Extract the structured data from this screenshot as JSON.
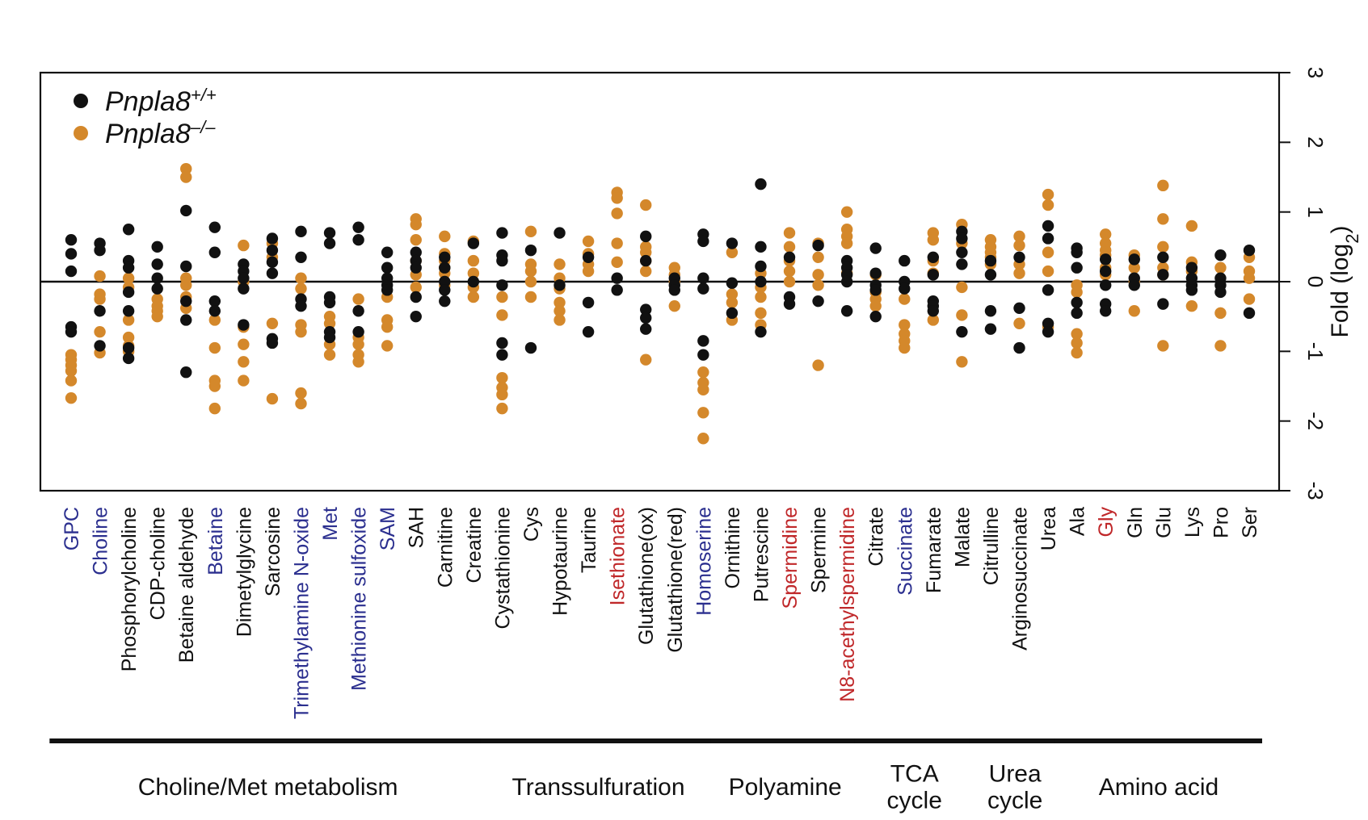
{
  "chart_data": {
    "type": "scatter",
    "ylabel": "Fold (log",
    "ylabel_sub": "2",
    "ylabel_close": ")",
    "ylim": [
      -3,
      3
    ],
    "yticks": [
      3,
      2,
      1,
      0,
      -1,
      -2,
      -3
    ],
    "legend": {
      "position": "top-left",
      "entries": [
        {
          "name": "Pnpla8",
          "sup": "+/+",
          "color": "#111111"
        },
        {
          "name": "Pnpla8",
          "sup": "–/–",
          "color": "#d4882b"
        }
      ]
    },
    "colors": {
      "wt": "#111111",
      "ko": "#d4882b",
      "blue_label": "#2b2f8f",
      "red_label": "#c0282a",
      "black_label": "#111111"
    },
    "categories": [
      {
        "name": "GPC",
        "label_color": "blue",
        "wt": [
          0.6,
          0.4,
          0.15,
          -0.65,
          -0.72
        ],
        "ko": [
          -1.05,
          -1.12,
          -1.2,
          -1.28,
          -1.42,
          -1.67
        ]
      },
      {
        "name": "Choline",
        "label_color": "blue",
        "wt": [
          0.55,
          0.45,
          -0.42,
          -0.92
        ],
        "ko": [
          0.08,
          -0.18,
          -0.25,
          -0.72,
          -1.02
        ]
      },
      {
        "name": "Phosphorylcholine",
        "label_color": "black",
        "wt": [
          0.75,
          0.3,
          0.2,
          -0.15,
          -0.42,
          -0.95,
          -1.1
        ],
        "ko": [
          0.05,
          -0.08,
          -0.55,
          -0.8,
          -0.92,
          -1.0
        ]
      },
      {
        "name": "CDP-choline",
        "label_color": "black",
        "wt": [
          0.5,
          0.25,
          0.05,
          -0.1
        ],
        "ko": [
          -0.25,
          -0.35,
          -0.42,
          -0.5
        ]
      },
      {
        "name": "Betaine aldehyde",
        "label_color": "black",
        "wt": [
          1.02,
          0.22,
          -0.28,
          -0.55,
          -1.3
        ],
        "ko": [
          1.62,
          1.5,
          0.05,
          -0.05,
          -0.22,
          -0.38
        ]
      },
      {
        "name": "Betaine",
        "label_color": "blue",
        "wt": [
          0.78,
          0.42,
          -0.28,
          -0.42
        ],
        "ko": [
          -0.55,
          -0.95,
          -1.42,
          -1.5,
          -1.82
        ]
      },
      {
        "name": "Dimetylglycine",
        "label_color": "black",
        "wt": [
          0.25,
          0.15,
          0.05,
          -0.1,
          -0.62
        ],
        "ko": [
          0.52,
          0.0,
          -0.65,
          -0.9,
          -1.15,
          -1.42
        ]
      },
      {
        "name": "Sarcosine",
        "label_color": "black",
        "wt": [
          0.62,
          0.45,
          0.28,
          0.12,
          -0.82,
          -0.88
        ],
        "ko": [
          0.55,
          0.35,
          -0.6,
          -1.68
        ]
      },
      {
        "name": "Trimethylamine N-oxide",
        "label_color": "blue",
        "wt": [
          0.72,
          0.35,
          -0.25,
          -0.35
        ],
        "ko": [
          0.05,
          -0.1,
          -0.62,
          -0.72,
          -1.6,
          -1.75
        ]
      },
      {
        "name": "Met",
        "label_color": "blue",
        "wt": [
          0.7,
          0.55,
          -0.22,
          -0.3,
          -0.72,
          -0.8
        ],
        "ko": [
          -0.5,
          -0.6,
          -0.9,
          -1.05
        ]
      },
      {
        "name": "Methionine sulfoxide",
        "label_color": "blue",
        "wt": [
          0.78,
          0.6,
          -0.42,
          -0.72
        ],
        "ko": [
          -0.25,
          -0.8,
          -0.9,
          -1.05,
          -1.15
        ]
      },
      {
        "name": "SAM",
        "label_color": "blue",
        "wt": [
          0.42,
          0.2,
          0.05,
          -0.05,
          -0.12
        ],
        "ko": [
          -0.22,
          -0.55,
          -0.65,
          -0.92
        ]
      },
      {
        "name": "SAH",
        "label_color": "black",
        "wt": [
          0.42,
          0.3,
          0.2,
          -0.22,
          -0.5
        ],
        "ko": [
          0.9,
          0.82,
          0.6,
          0.3,
          0.1,
          -0.08
        ]
      },
      {
        "name": "Carnitine",
        "label_color": "black",
        "wt": [
          0.35,
          0.2,
          0.0,
          -0.12,
          -0.28
        ],
        "ko": [
          0.65,
          0.4,
          0.3,
          0.2,
          0.12,
          -0.05
        ]
      },
      {
        "name": "Creatine",
        "label_color": "black",
        "wt": [
          0.55,
          0.0
        ],
        "ko": [
          0.58,
          0.3,
          0.12,
          -0.08,
          -0.22
        ]
      },
      {
        "name": "Cystathionine",
        "label_color": "black",
        "wt": [
          0.7,
          0.38,
          0.3,
          -0.05,
          -0.88,
          -1.05
        ],
        "ko": [
          -0.22,
          -0.48,
          -1.38,
          -1.52,
          -1.62,
          -1.82
        ]
      },
      {
        "name": "Cys",
        "label_color": "black",
        "wt": [
          0.45,
          -0.95
        ],
        "ko": [
          0.72,
          0.25,
          0.15,
          0.0,
          -0.22
        ]
      },
      {
        "name": "Hypotaurine",
        "label_color": "black",
        "wt": [
          0.7,
          -0.05
        ],
        "ko": [
          0.25,
          0.05,
          -0.1,
          -0.3,
          -0.42,
          -0.55
        ]
      },
      {
        "name": "Taurine",
        "label_color": "black",
        "wt": [
          0.35,
          -0.3,
          -0.72
        ],
        "ko": [
          0.58,
          0.4,
          0.25,
          0.15
        ]
      },
      {
        "name": "Isethionate",
        "label_color": "red",
        "wt": [
          0.05,
          -0.12
        ],
        "ko": [
          1.28,
          1.2,
          0.98,
          0.55,
          0.28
        ]
      },
      {
        "name": "Glutathione(ox)",
        "label_color": "black",
        "wt": [
          0.65,
          0.3,
          -0.4,
          -0.52,
          -0.68
        ],
        "ko": [
          1.1,
          0.5,
          0.42,
          0.3,
          0.15,
          -1.12
        ]
      },
      {
        "name": "Glutathione(red)",
        "label_color": "black",
        "wt": [
          0.05,
          -0.05,
          -0.12
        ],
        "ko": [
          0.2,
          0.1,
          0.0,
          -0.35
        ]
      },
      {
        "name": "Homoserine",
        "label_color": "blue",
        "wt": [
          0.68,
          0.58,
          0.05,
          -0.1,
          -0.85,
          -1.05
        ],
        "ko": [
          -1.3,
          -1.45,
          -1.55,
          -1.88,
          -2.25
        ]
      },
      {
        "name": "Ornithine",
        "label_color": "black",
        "wt": [
          0.55,
          -0.02,
          -0.45
        ],
        "ko": [
          0.42,
          -0.18,
          -0.3,
          -0.55
        ]
      },
      {
        "name": "Putrescine",
        "label_color": "black",
        "wt": [
          1.4,
          0.5,
          0.22,
          0.0,
          -0.72
        ],
        "ko": [
          0.12,
          -0.08,
          -0.22,
          -0.45,
          -0.62
        ]
      },
      {
        "name": "Spermidine",
        "label_color": "red",
        "wt": [
          0.35,
          -0.22,
          -0.32
        ],
        "ko": [
          0.7,
          0.5,
          0.3,
          0.15,
          0.0
        ]
      },
      {
        "name": "Spermine",
        "label_color": "black",
        "wt": [
          0.52,
          -0.28
        ],
        "ko": [
          0.55,
          0.35,
          0.1,
          -0.05,
          -1.2
        ]
      },
      {
        "name": "N8-acethylspermidine",
        "label_color": "red",
        "wt": [
          0.3,
          0.2,
          0.1,
          0.0,
          -0.42
        ],
        "ko": [
          1.0,
          0.75,
          0.65,
          0.55,
          0.12
        ]
      },
      {
        "name": "Citrate",
        "label_color": "black",
        "wt": [
          0.48,
          0.12,
          -0.05,
          -0.12,
          -0.5
        ],
        "ko": [
          0.1,
          -0.15,
          -0.25,
          -0.35
        ]
      },
      {
        "name": "Succinate",
        "label_color": "blue",
        "wt": [
          0.3,
          0.0,
          -0.1
        ],
        "ko": [
          -0.25,
          -0.62,
          -0.75,
          -0.85,
          -0.95
        ]
      },
      {
        "name": "Fumarate",
        "label_color": "black",
        "wt": [
          0.35,
          0.1,
          -0.28,
          -0.35,
          -0.42
        ],
        "ko": [
          0.7,
          0.6,
          0.3,
          0.12,
          -0.55
        ]
      },
      {
        "name": "Malate",
        "label_color": "black",
        "wt": [
          0.72,
          0.62,
          0.42,
          0.25,
          -0.72
        ],
        "ko": [
          0.82,
          0.55,
          -0.08,
          -0.48,
          -1.15
        ]
      },
      {
        "name": "Citrulline",
        "label_color": "black",
        "wt": [
          0.3,
          0.1,
          -0.42,
          -0.68
        ],
        "ko": [
          0.6,
          0.5,
          0.42,
          0.35,
          0.25
        ]
      },
      {
        "name": "Arginosuccinate",
        "label_color": "black",
        "wt": [
          0.35,
          -0.38,
          -0.95
        ],
        "ko": [
          0.65,
          0.52,
          0.25,
          0.12,
          -0.6
        ]
      },
      {
        "name": "Urea",
        "label_color": "black",
        "wt": [
          0.8,
          0.62,
          -0.12,
          -0.6,
          -0.72
        ],
        "ko": [
          1.25,
          1.1,
          0.42,
          0.15,
          -0.65
        ]
      },
      {
        "name": "Ala",
        "label_color": "black",
        "wt": [
          0.48,
          0.42,
          0.2,
          -0.3,
          -0.45
        ],
        "ko": [
          -0.05,
          -0.15,
          -0.75,
          -0.88,
          -1.02
        ]
      },
      {
        "name": "Gly",
        "label_color": "red",
        "wt": [
          0.32,
          0.15,
          -0.05,
          -0.32,
          -0.42
        ],
        "ko": [
          0.68,
          0.55,
          0.45,
          0.38,
          0.2,
          0.1
        ]
      },
      {
        "name": "Gln",
        "label_color": "black",
        "wt": [
          0.32,
          0.05,
          -0.05
        ],
        "ko": [
          0.38,
          0.2,
          0.0,
          -0.42
        ]
      },
      {
        "name": "Glu",
        "label_color": "black",
        "wt": [
          0.35,
          0.1,
          -0.32
        ],
        "ko": [
          1.38,
          0.9,
          0.5,
          0.2,
          0.1,
          -0.92
        ]
      },
      {
        "name": "Lys",
        "label_color": "black",
        "wt": [
          0.2,
          0.05,
          -0.05,
          -0.12
        ],
        "ko": [
          0.8,
          0.28,
          0.15,
          -0.35
        ]
      },
      {
        "name": "Pro",
        "label_color": "black",
        "wt": [
          0.38,
          0.05,
          -0.05,
          -0.15
        ],
        "ko": [
          0.2,
          -0.45,
          -0.92
        ]
      },
      {
        "name": "Ser",
        "label_color": "black",
        "wt": [
          0.45,
          -0.45
        ],
        "ko": [
          0.35,
          0.15,
          0.05,
          -0.25
        ]
      }
    ],
    "groups": [
      {
        "label": [
          "Choline/Met metabolism"
        ],
        "start": 0,
        "end": 14
      },
      {
        "label": [
          "Transsulfuration"
        ],
        "start": 15,
        "end": 22
      },
      {
        "label": [
          "Polyamine"
        ],
        "start": 23,
        "end": 27
      },
      {
        "label": [
          "TCA",
          "cycle"
        ],
        "start": 28,
        "end": 31
      },
      {
        "label": [
          "Urea",
          "cycle"
        ],
        "start": 32,
        "end": 34
      },
      {
        "label": [
          "Amino acid"
        ],
        "start": 35,
        "end": 41
      }
    ]
  }
}
